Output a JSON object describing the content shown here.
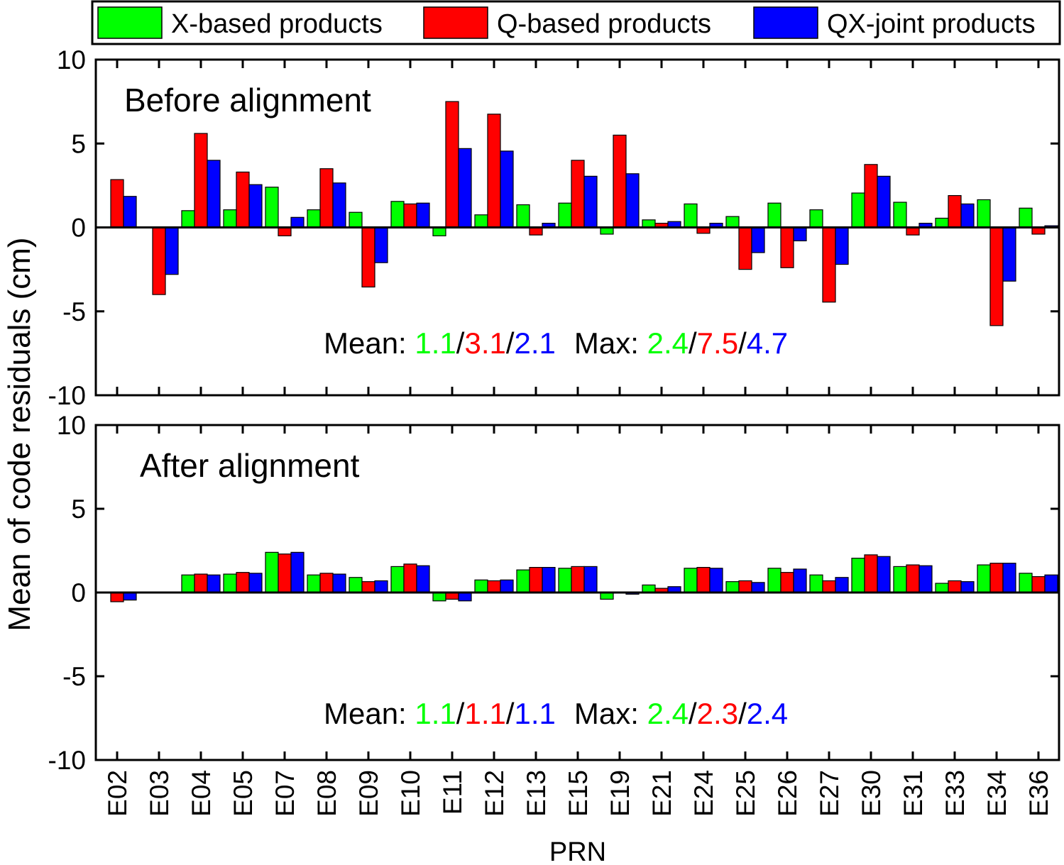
{
  "chart_data": [
    {
      "type": "bar",
      "panel_label": "Before alignment",
      "ylabel": "Mean of code residuals (cm)",
      "xlabel": "PRN",
      "ylim": [
        -10,
        10
      ],
      "yticks": [
        -10,
        -5,
        0,
        5,
        10
      ],
      "categories": [
        "E02",
        "E03",
        "E04",
        "E05",
        "E07",
        "E08",
        "E09",
        "E10",
        "E11",
        "E12",
        "E13",
        "E15",
        "E19",
        "E21",
        "E24",
        "E25",
        "E26",
        "E27",
        "E30",
        "E31",
        "E33",
        "E34",
        "E36"
      ],
      "series": [
        {
          "name": "X-based products",
          "color": "#00ff00",
          "values": [
            0,
            0,
            1.0,
            1.05,
            2.4,
            1.05,
            0.9,
            1.55,
            -0.5,
            0.75,
            1.35,
            1.45,
            -0.4,
            0.45,
            1.4,
            0.65,
            1.45,
            1.05,
            2.05,
            1.5,
            0.55,
            1.65,
            1.15
          ]
        },
        {
          "name": "Q-based products",
          "color": "#ff0000",
          "values": [
            2.85,
            -4.0,
            5.6,
            3.3,
            -0.5,
            3.5,
            -3.55,
            1.4,
            7.5,
            6.75,
            -0.45,
            4.0,
            5.5,
            0.25,
            -0.35,
            -2.5,
            -2.4,
            -4.45,
            3.75,
            -0.45,
            1.9,
            -5.85,
            -0.4
          ]
        },
        {
          "name": "QX-joint products",
          "color": "#0000ff",
          "values": [
            1.85,
            -2.8,
            4.0,
            2.55,
            0.6,
            2.65,
            -2.1,
            1.45,
            4.7,
            4.55,
            0.25,
            3.05,
            3.2,
            0.35,
            0.25,
            -1.5,
            -0.8,
            -2.2,
            3.05,
            0.25,
            1.4,
            -3.2,
            0.1
          ]
        }
      ],
      "annotation": {
        "mean_label": "Mean: ",
        "mean": [
          "1.1",
          "3.1",
          "2.1"
        ],
        "max_label": "Max: ",
        "max": [
          "2.4",
          "7.5",
          "4.7"
        ],
        "sep": "/"
      }
    },
    {
      "type": "bar",
      "panel_label": "After alignment",
      "ylim": [
        -10,
        10
      ],
      "yticks": [
        -10,
        -5,
        0,
        5,
        10
      ],
      "categories": [
        "E02",
        "E03",
        "E04",
        "E05",
        "E07",
        "E08",
        "E09",
        "E10",
        "E11",
        "E12",
        "E13",
        "E15",
        "E19",
        "E21",
        "E24",
        "E25",
        "E26",
        "E27",
        "E30",
        "E31",
        "E33",
        "E34",
        "E36"
      ],
      "series": [
        {
          "name": "X-based products",
          "color": "#00ff00",
          "values": [
            0,
            0,
            1.05,
            1.1,
            2.4,
            1.05,
            0.9,
            1.55,
            -0.5,
            0.75,
            1.35,
            1.45,
            -0.4,
            0.45,
            1.45,
            0.65,
            1.45,
            1.05,
            2.05,
            1.55,
            0.55,
            1.65,
            1.15
          ]
        },
        {
          "name": "Q-based products",
          "color": "#ff0000",
          "values": [
            -0.55,
            0,
            1.1,
            1.2,
            2.3,
            1.15,
            0.65,
            1.7,
            -0.4,
            0.7,
            1.5,
            1.55,
            0,
            0.25,
            1.5,
            0.7,
            1.2,
            0.7,
            2.25,
            1.65,
            0.7,
            1.75,
            0.95
          ]
        },
        {
          "name": "QX-joint products",
          "color": "#0000ff",
          "values": [
            -0.45,
            0.03,
            1.05,
            1.15,
            2.4,
            1.1,
            0.7,
            1.6,
            -0.5,
            0.75,
            1.5,
            1.55,
            -0.1,
            0.35,
            1.45,
            0.6,
            1.4,
            0.9,
            2.15,
            1.6,
            0.65,
            1.75,
            1.05
          ]
        }
      ],
      "annotation": {
        "mean_label": "Mean: ",
        "mean": [
          "1.1",
          "1.1",
          "1.1"
        ],
        "max_label": "Max: ",
        "max": [
          "2.4",
          "2.3",
          "2.4"
        ],
        "sep": "/"
      }
    }
  ],
  "legend": {
    "placement": "top",
    "items": [
      {
        "label": "X-based products",
        "color": "#00ff00"
      },
      {
        "label": "Q-based products",
        "color": "#ff0000"
      },
      {
        "label": "QX-joint products",
        "color": "#0000ff"
      }
    ]
  }
}
